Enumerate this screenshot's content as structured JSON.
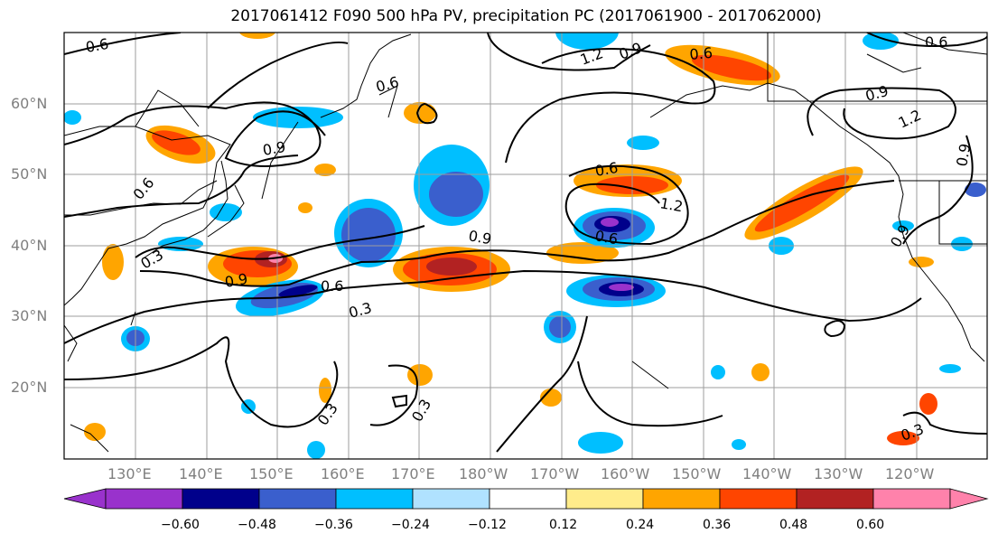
{
  "title": "2017061412 F090 500 hPa PV, precipitation PC (2017061900 - 2017062000)",
  "lat_labels": [
    "60°N",
    "50°N",
    "40°N",
    "30°N",
    "20°N"
  ],
  "lon_labels": [
    "130°E",
    "140°E",
    "150°E",
    "160°E",
    "170°E",
    "180°W",
    "170°W",
    "160°W",
    "150°W",
    "140°W",
    "130°W",
    "120°W"
  ],
  "contour_labels": [
    "0.6",
    "0.6",
    "0.9",
    "0.6",
    "0.9",
    "1.2",
    "0.6",
    "0.9",
    "1.2",
    "0.6",
    "0.9",
    "1.2",
    "0.6",
    "0.3",
    "0.9",
    "0.6",
    "0.3",
    "0.3",
    "0.3",
    "0.3",
    "0.9",
    "0.6",
    "0.9"
  ],
  "colorbar": {
    "ticks": [
      "−0.60",
      "−0.48",
      "−0.36",
      "−0.24",
      "−0.12",
      "0.12",
      "0.24",
      "0.36",
      "0.48",
      "0.60"
    ],
    "colors": [
      "#9932cc",
      "#00008b",
      "#3a5fcd",
      "#00bfff",
      "#b0e2ff",
      "#ffffff",
      "#ffec8b",
      "#ffa500",
      "#ff4500",
      "#b22222",
      "#ff82ab"
    ]
  }
}
